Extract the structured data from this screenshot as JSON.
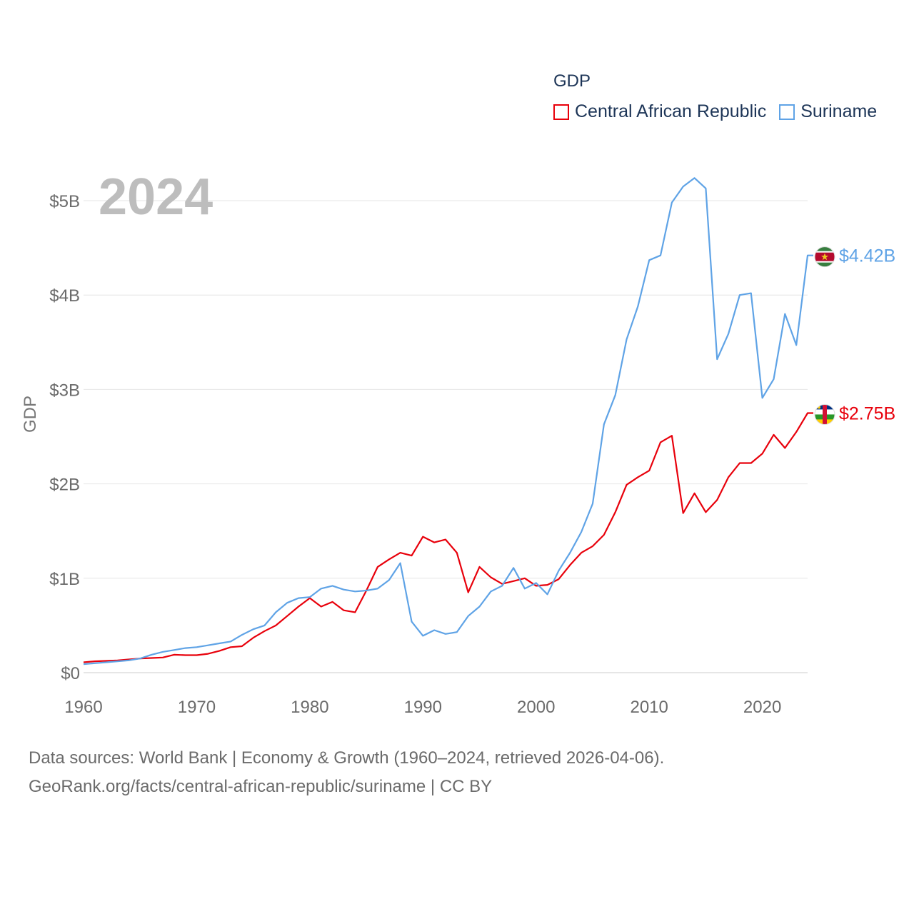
{
  "chart_data": {
    "type": "line",
    "title": "GDP",
    "ylabel": "GDP",
    "xlabel": "",
    "year_watermark": "2024",
    "xlim": [
      1960,
      2024
    ],
    "ylim": [
      0,
      5.25
    ],
    "x_ticks": [
      1960,
      1970,
      1980,
      1990,
      2000,
      2010,
      2020
    ],
    "y_ticks": [
      {
        "value": 0,
        "label": "$0"
      },
      {
        "value": 1,
        "label": "$1B"
      },
      {
        "value": 2,
        "label": "$2B"
      },
      {
        "value": 3,
        "label": "$3B"
      },
      {
        "value": 4,
        "label": "$4B"
      },
      {
        "value": 5,
        "label": "$5B"
      }
    ],
    "grid": true,
    "legend_position": "top-right",
    "series": [
      {
        "name": "Central African Republic",
        "color": "#e8000b",
        "end_label": "$2.75B",
        "flag_icon": "central-african-republic-flag-icon",
        "start_year": 1960,
        "values": [
          0.11,
          0.12,
          0.125,
          0.13,
          0.14,
          0.15,
          0.155,
          0.16,
          0.19,
          0.185,
          0.185,
          0.2,
          0.23,
          0.27,
          0.28,
          0.37,
          0.44,
          0.5,
          0.6,
          0.7,
          0.79,
          0.7,
          0.75,
          0.66,
          0.64,
          0.87,
          1.12,
          1.2,
          1.27,
          1.24,
          1.44,
          1.38,
          1.41,
          1.27,
          0.85,
          1.12,
          1.01,
          0.94,
          0.97,
          1.0,
          0.92,
          0.93,
          0.99,
          1.14,
          1.27,
          1.34,
          1.46,
          1.7,
          1.99,
          2.07,
          2.14,
          2.44,
          2.51,
          1.69,
          1.9,
          1.7,
          1.83,
          2.07,
          2.22,
          2.22,
          2.32,
          2.52,
          2.38,
          2.55,
          2.75
        ]
      },
      {
        "name": "Suriname",
        "color": "#5fa3e6",
        "end_label": "$4.42B",
        "flag_icon": "suriname-flag-icon",
        "start_year": 1960,
        "values": [
          0.09,
          0.1,
          0.11,
          0.12,
          0.13,
          0.15,
          0.19,
          0.22,
          0.24,
          0.26,
          0.27,
          0.29,
          0.31,
          0.33,
          0.4,
          0.46,
          0.5,
          0.64,
          0.74,
          0.79,
          0.8,
          0.89,
          0.92,
          0.88,
          0.86,
          0.87,
          0.89,
          0.98,
          1.16,
          0.54,
          0.39,
          0.45,
          0.41,
          0.43,
          0.6,
          0.7,
          0.86,
          0.92,
          1.11,
          0.89,
          0.95,
          0.83,
          1.08,
          1.27,
          1.49,
          1.79,
          2.63,
          2.94,
          3.53,
          3.88,
          4.37,
          4.42,
          4.98,
          5.15,
          5.24,
          5.13,
          3.32,
          3.59,
          4.0,
          4.02,
          2.91,
          3.11,
          3.8,
          3.47,
          4.42
        ]
      }
    ]
  },
  "footer": {
    "line1": "Data sources: World Bank | Economy & Growth (1960–2024, retrieved 2026-04-06).",
    "line2": "GeoRank.org/facts/central-african-republic/suriname | CC BY"
  }
}
